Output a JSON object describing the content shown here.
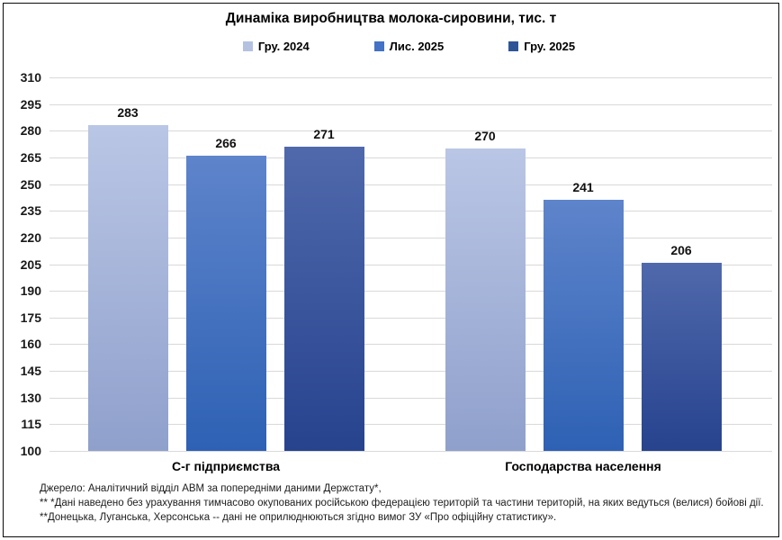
{
  "chart_data": {
    "type": "bar",
    "title": "Динаміка виробництва молока-сировини, тис. т",
    "categories": [
      "С-г підприємства",
      "Господарства населення"
    ],
    "series": [
      {
        "name": "Гру. 2024",
        "values": [
          283,
          270
        ],
        "color": "#b4c1e1",
        "gradient_top": "#bac6e5",
        "gradient_bottom": "#8fa0cc"
      },
      {
        "name": "Лис. 2025",
        "values": [
          266,
          241
        ],
        "color": "#4472c4",
        "gradient_top": "#5e84cb",
        "gradient_bottom": "#2e61b4"
      },
      {
        "name": "Гру. 2025",
        "values": [
          271,
          206
        ],
        "color": "#2f5597",
        "gradient_top": "#5069ac",
        "gradient_bottom": "#27438e"
      }
    ],
    "ylim": [
      100,
      310
    ],
    "ytick_step": 15,
    "grid": true,
    "gridline_color": "#d9d9d9",
    "legend_position": "top",
    "xlabel": "",
    "ylabel": ""
  },
  "footnotes": {
    "line1": "Джерело:  Аналітичний відділ АВМ за попередніми даними Держстату*,",
    "line2": "** *Дані наведено  без урахування тимчасово окупованих російською федерацією територій та частини територій, на яких ведуться  (велися) бойові дії.",
    "line3": "**Донецька,  Луганська, Херсонська -- дані не оприлюднюються  згідно вимог ЗУ «Про офіційну статистику»."
  }
}
